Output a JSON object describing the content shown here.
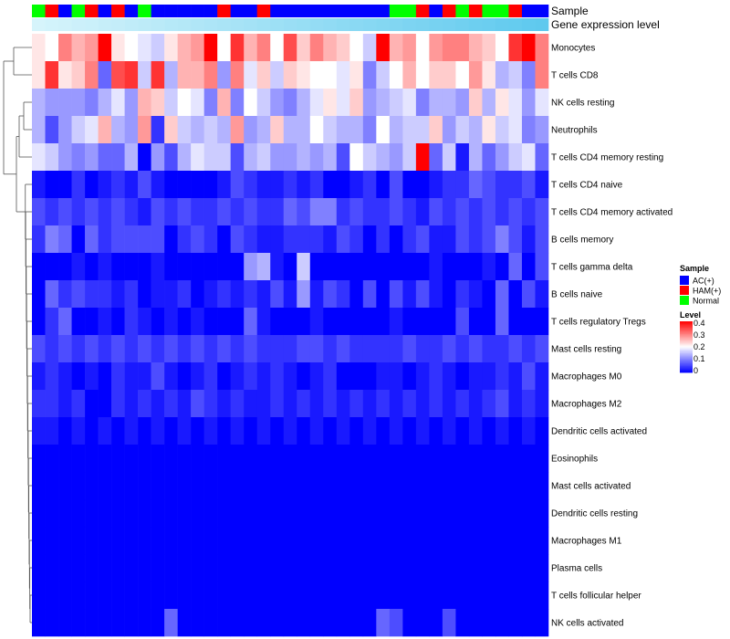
{
  "chart_data": {
    "type": "heatmap",
    "title": "",
    "annotation_labels": [
      "Sample",
      "Gene expression level"
    ],
    "rows": [
      "Monocytes",
      "T cells CD8",
      "NK cells resting",
      "Neutrophils",
      "T cells CD4 memory resting",
      "T cells CD4 naive",
      "T cells CD4 memory activated",
      "B cells memory",
      "T cells gamma delta",
      "B cells naive",
      "T cells regulatory  Tregs",
      "Mast cells resting",
      "Macrophages M0",
      "Macrophages M2",
      "Dendritic cells activated",
      "Eosinophils",
      "Mast cells activated",
      "Dendritic cells resting",
      "Macrophages M1",
      "Plasma cells",
      "T cells follicular helper",
      "NK cells activated"
    ],
    "sample_groups": [
      "N",
      "H",
      "A",
      "N",
      "H",
      "A",
      "H",
      "A",
      "N",
      "A",
      "A",
      "A",
      "A",
      "A",
      "H",
      "A",
      "A",
      "H",
      "A",
      "A",
      "A",
      "A",
      "A",
      "A",
      "A",
      "A",
      "A",
      "N",
      "N",
      "H",
      "A",
      "H",
      "N",
      "H",
      "N",
      "N",
      "H",
      "A",
      "A"
    ],
    "expression_annotation": [
      0.0,
      0.03,
      0.05,
      0.08,
      0.1,
      0.13,
      0.15,
      0.18,
      0.2,
      0.23,
      0.26,
      0.28,
      0.31,
      0.33,
      0.36,
      0.38,
      0.41,
      0.44,
      0.46,
      0.49,
      0.51,
      0.54,
      0.56,
      0.59,
      0.62,
      0.64,
      0.67,
      0.69,
      0.72,
      0.74,
      0.77,
      0.79,
      0.82,
      0.85,
      0.87,
      0.9,
      0.92,
      0.95,
      0.97
    ],
    "values": [
      [
        0.22,
        0.2,
        0.3,
        0.26,
        0.28,
        0.4,
        0.22,
        0.2,
        0.18,
        0.16,
        0.22,
        0.26,
        0.28,
        0.4,
        0.2,
        0.36,
        0.26,
        0.3,
        0.2,
        0.34,
        0.24,
        0.3,
        0.26,
        0.24,
        0.2,
        0.16,
        0.4,
        0.26,
        0.28,
        0.2,
        0.28,
        0.3,
        0.3,
        0.26,
        0.24,
        0.2,
        0.36,
        0.4,
        0.3
      ],
      [
        0.22,
        0.36,
        0.22,
        0.24,
        0.3,
        0.08,
        0.34,
        0.36,
        0.16,
        0.36,
        0.14,
        0.26,
        0.26,
        0.3,
        0.12,
        0.3,
        0.18,
        0.24,
        0.16,
        0.24,
        0.22,
        0.2,
        0.2,
        0.18,
        0.22,
        0.1,
        0.16,
        0.2,
        0.26,
        0.2,
        0.24,
        0.24,
        0.2,
        0.28,
        0.22,
        0.14,
        0.16,
        0.1,
        0.3
      ],
      [
        0.14,
        0.12,
        0.12,
        0.12,
        0.1,
        0.14,
        0.18,
        0.12,
        0.26,
        0.24,
        0.16,
        0.2,
        0.18,
        0.1,
        0.26,
        0.1,
        0.2,
        0.16,
        0.12,
        0.1,
        0.14,
        0.18,
        0.22,
        0.18,
        0.24,
        0.12,
        0.14,
        0.16,
        0.18,
        0.1,
        0.14,
        0.14,
        0.12,
        0.24,
        0.14,
        0.22,
        0.18,
        0.12,
        0.18
      ],
      [
        0.14,
        0.06,
        0.12,
        0.16,
        0.18,
        0.26,
        0.14,
        0.12,
        0.28,
        0.04,
        0.24,
        0.16,
        0.14,
        0.16,
        0.14,
        0.28,
        0.12,
        0.14,
        0.24,
        0.14,
        0.14,
        0.2,
        0.16,
        0.14,
        0.14,
        0.1,
        0.2,
        0.14,
        0.16,
        0.16,
        0.24,
        0.12,
        0.16,
        0.14,
        0.22,
        0.16,
        0.18,
        0.1,
        0.12
      ],
      [
        0.18,
        0.16,
        0.12,
        0.1,
        0.12,
        0.08,
        0.08,
        0.14,
        0.0,
        0.12,
        0.06,
        0.14,
        0.18,
        0.16,
        0.16,
        0.06,
        0.14,
        0.16,
        0.12,
        0.12,
        0.14,
        0.12,
        0.14,
        0.06,
        0.2,
        0.16,
        0.14,
        0.12,
        0.16,
        0.4,
        0.08,
        0.16,
        0.02,
        0.14,
        0.08,
        0.12,
        0.16,
        0.18,
        0.08
      ],
      [
        0.02,
        0.0,
        0.0,
        0.04,
        0.0,
        0.02,
        0.04,
        0.02,
        0.06,
        0.02,
        0.0,
        0.0,
        0.0,
        0.0,
        0.02,
        0.06,
        0.04,
        0.02,
        0.02,
        0.04,
        0.02,
        0.04,
        0.0,
        0.0,
        0.02,
        0.04,
        0.0,
        0.06,
        0.0,
        0.0,
        0.02,
        0.04,
        0.04,
        0.08,
        0.06,
        0.04,
        0.04,
        0.06,
        0.02
      ],
      [
        0.06,
        0.04,
        0.06,
        0.04,
        0.06,
        0.04,
        0.06,
        0.04,
        0.02,
        0.06,
        0.04,
        0.06,
        0.04,
        0.04,
        0.06,
        0.04,
        0.06,
        0.04,
        0.04,
        0.08,
        0.06,
        0.1,
        0.1,
        0.04,
        0.06,
        0.04,
        0.04,
        0.06,
        0.04,
        0.02,
        0.06,
        0.04,
        0.06,
        0.04,
        0.06,
        0.04,
        0.06,
        0.04,
        0.06
      ],
      [
        0.04,
        0.1,
        0.08,
        0.0,
        0.08,
        0.04,
        0.06,
        0.06,
        0.06,
        0.06,
        0.0,
        0.04,
        0.06,
        0.04,
        0.0,
        0.06,
        0.04,
        0.02,
        0.02,
        0.04,
        0.04,
        0.04,
        0.02,
        0.06,
        0.04,
        0.0,
        0.04,
        0.0,
        0.04,
        0.06,
        0.02,
        0.02,
        0.06,
        0.04,
        0.06,
        0.1,
        0.06,
        0.02,
        0.06
      ],
      [
        0.0,
        0.0,
        0.0,
        0.02,
        0.0,
        0.02,
        0.0,
        0.0,
        0.0,
        0.02,
        0.0,
        0.0,
        0.0,
        0.0,
        0.0,
        0.0,
        0.12,
        0.14,
        0.02,
        0.0,
        0.16,
        0.0,
        0.0,
        0.0,
        0.0,
        0.0,
        0.0,
        0.0,
        0.0,
        0.0,
        0.02,
        0.0,
        0.0,
        0.0,
        0.02,
        0.0,
        0.08,
        0.0,
        0.06
      ],
      [
        0.0,
        0.08,
        0.04,
        0.06,
        0.04,
        0.04,
        0.02,
        0.04,
        0.0,
        0.02,
        0.02,
        0.04,
        0.0,
        0.02,
        0.04,
        0.02,
        0.04,
        0.02,
        0.06,
        0.02,
        0.12,
        0.02,
        0.06,
        0.04,
        0.0,
        0.06,
        0.0,
        0.06,
        0.02,
        0.06,
        0.02,
        0.0,
        0.04,
        0.02,
        0.0,
        0.08,
        0.0,
        0.06,
        0.02
      ],
      [
        0.0,
        0.04,
        0.08,
        0.0,
        0.0,
        0.02,
        0.0,
        0.04,
        0.02,
        0.0,
        0.02,
        0.0,
        0.02,
        0.0,
        0.0,
        0.0,
        0.08,
        0.02,
        0.0,
        0.0,
        0.0,
        0.02,
        0.0,
        0.0,
        0.0,
        0.0,
        0.0,
        0.02,
        0.0,
        0.0,
        0.0,
        0.0,
        0.06,
        0.0,
        0.0,
        0.08,
        0.0,
        0.0,
        0.0
      ],
      [
        0.06,
        0.04,
        0.06,
        0.04,
        0.06,
        0.04,
        0.06,
        0.04,
        0.06,
        0.04,
        0.06,
        0.04,
        0.06,
        0.04,
        0.06,
        0.04,
        0.06,
        0.04,
        0.04,
        0.04,
        0.06,
        0.06,
        0.04,
        0.06,
        0.04,
        0.04,
        0.04,
        0.04,
        0.06,
        0.04,
        0.04,
        0.06,
        0.04,
        0.06,
        0.04,
        0.04,
        0.06,
        0.04,
        0.06
      ],
      [
        0.02,
        0.04,
        0.02,
        0.0,
        0.02,
        0.0,
        0.04,
        0.02,
        0.02,
        0.06,
        0.02,
        0.0,
        0.02,
        0.04,
        0.0,
        0.02,
        0.04,
        0.02,
        0.04,
        0.02,
        0.0,
        0.02,
        0.04,
        0.0,
        0.0,
        0.0,
        0.02,
        0.02,
        0.0,
        0.02,
        0.04,
        0.02,
        0.0,
        0.02,
        0.02,
        0.04,
        0.02,
        0.06,
        0.02
      ],
      [
        0.04,
        0.04,
        0.02,
        0.04,
        0.0,
        0.0,
        0.04,
        0.02,
        0.04,
        0.02,
        0.04,
        0.02,
        0.06,
        0.04,
        0.02,
        0.04,
        0.02,
        0.02,
        0.04,
        0.02,
        0.04,
        0.02,
        0.04,
        0.02,
        0.04,
        0.02,
        0.04,
        0.02,
        0.04,
        0.02,
        0.04,
        0.02,
        0.04,
        0.02,
        0.04,
        0.06,
        0.02,
        0.04,
        0.02
      ],
      [
        0.02,
        0.02,
        0.0,
        0.02,
        0.0,
        0.02,
        0.0,
        0.02,
        0.0,
        0.02,
        0.0,
        0.02,
        0.0,
        0.02,
        0.0,
        0.02,
        0.0,
        0.02,
        0.0,
        0.02,
        0.0,
        0.02,
        0.0,
        0.02,
        0.0,
        0.02,
        0.0,
        0.02,
        0.0,
        0.02,
        0.0,
        0.02,
        0.0,
        0.02,
        0.0,
        0.02,
        0.0,
        0.02,
        0.0
      ],
      [
        0.0,
        0.0,
        0.0,
        0.0,
        0.0,
        0.0,
        0.0,
        0.0,
        0.0,
        0.0,
        0.0,
        0.0,
        0.0,
        0.0,
        0.0,
        0.0,
        0.0,
        0.0,
        0.0,
        0.0,
        0.0,
        0.0,
        0.0,
        0.0,
        0.0,
        0.0,
        0.0,
        0.0,
        0.0,
        0.0,
        0.0,
        0.0,
        0.0,
        0.0,
        0.0,
        0.0,
        0.0,
        0.0,
        0.0
      ],
      [
        0.0,
        0.0,
        0.0,
        0.0,
        0.0,
        0.0,
        0.0,
        0.0,
        0.0,
        0.0,
        0.0,
        0.0,
        0.0,
        0.0,
        0.0,
        0.0,
        0.0,
        0.0,
        0.0,
        0.0,
        0.0,
        0.0,
        0.0,
        0.0,
        0.0,
        0.0,
        0.0,
        0.0,
        0.0,
        0.0,
        0.0,
        0.0,
        0.0,
        0.0,
        0.0,
        0.0,
        0.0,
        0.0,
        0.0
      ],
      [
        0.0,
        0.0,
        0.0,
        0.0,
        0.0,
        0.0,
        0.0,
        0.0,
        0.0,
        0.0,
        0.0,
        0.0,
        0.0,
        0.0,
        0.0,
        0.0,
        0.0,
        0.0,
        0.0,
        0.0,
        0.0,
        0.0,
        0.0,
        0.0,
        0.0,
        0.0,
        0.0,
        0.0,
        0.0,
        0.0,
        0.0,
        0.0,
        0.0,
        0.0,
        0.0,
        0.0,
        0.0,
        0.0,
        0.0
      ],
      [
        0.0,
        0.0,
        0.0,
        0.0,
        0.0,
        0.0,
        0.0,
        0.0,
        0.0,
        0.0,
        0.0,
        0.0,
        0.0,
        0.0,
        0.0,
        0.0,
        0.0,
        0.0,
        0.0,
        0.0,
        0.0,
        0.0,
        0.0,
        0.0,
        0.0,
        0.0,
        0.0,
        0.0,
        0.0,
        0.0,
        0.0,
        0.0,
        0.0,
        0.0,
        0.0,
        0.0,
        0.0,
        0.0,
        0.0
      ],
      [
        0.0,
        0.0,
        0.0,
        0.0,
        0.0,
        0.0,
        0.0,
        0.0,
        0.0,
        0.0,
        0.0,
        0.0,
        0.0,
        0.0,
        0.0,
        0.0,
        0.0,
        0.0,
        0.0,
        0.0,
        0.0,
        0.0,
        0.0,
        0.0,
        0.0,
        0.0,
        0.0,
        0.0,
        0.0,
        0.0,
        0.0,
        0.0,
        0.0,
        0.0,
        0.0,
        0.0,
        0.0,
        0.0,
        0.0
      ],
      [
        0.0,
        0.0,
        0.0,
        0.0,
        0.0,
        0.0,
        0.0,
        0.0,
        0.0,
        0.0,
        0.0,
        0.0,
        0.0,
        0.0,
        0.0,
        0.0,
        0.0,
        0.0,
        0.0,
        0.0,
        0.0,
        0.0,
        0.0,
        0.0,
        0.0,
        0.0,
        0.0,
        0.0,
        0.0,
        0.0,
        0.0,
        0.0,
        0.0,
        0.0,
        0.0,
        0.0,
        0.0,
        0.0,
        0.0
      ],
      [
        0.0,
        0.0,
        0.0,
        0.0,
        0.0,
        0.0,
        0.0,
        0.0,
        0.0,
        0.0,
        0.08,
        0.0,
        0.0,
        0.0,
        0.0,
        0.0,
        0.0,
        0.0,
        0.0,
        0.0,
        0.0,
        0.0,
        0.0,
        0.0,
        0.0,
        0.0,
        0.08,
        0.06,
        0.0,
        0.0,
        0.0,
        0.06,
        0.0,
        0.0,
        0.0,
        0.0,
        0.0,
        0.0,
        0.0
      ]
    ],
    "legend": {
      "sample_title": "Sample",
      "sample_entries": [
        {
          "key": "A",
          "label": "AC(+)",
          "color": "#0000ff"
        },
        {
          "key": "H",
          "label": "HAM(+)",
          "color": "#ff0000"
        },
        {
          "key": "N",
          "label": "Normal",
          "color": "#00ff00"
        }
      ],
      "level_title": "Level",
      "level_ticks": [
        "0.4",
        "0.3",
        "0.2",
        "0.1",
        "0"
      ],
      "level_range": [
        0,
        0.4
      ],
      "placement": "right"
    }
  },
  "colors": {
    "low": "#0000ff",
    "mid": "#ffffff",
    "high": "#ff0000",
    "annotation_start": "#d6f4fb",
    "annotation_end": "#5bc8ee"
  }
}
